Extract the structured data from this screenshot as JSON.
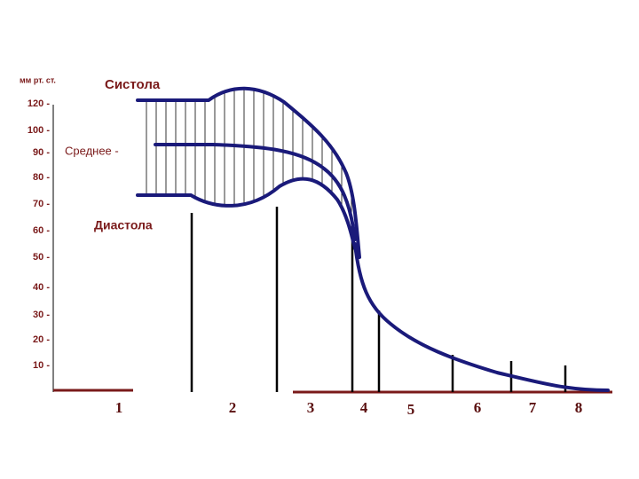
{
  "axis_label": "мм рт. ст.",
  "y_tick_labels": [
    "120 -",
    "100 -",
    "90 -",
    "80 -",
    "70 -",
    "60 -",
    "50 -",
    "40 -",
    "30 -",
    "20 -",
    "10 -"
  ],
  "curve_labels": {
    "systole": "Систола",
    "mean": "Среднее -",
    "diastole": "Диастола"
  },
  "segments": [
    "1",
    "2",
    "3",
    "4",
    "5",
    "6",
    "7",
    "8"
  ]
}
